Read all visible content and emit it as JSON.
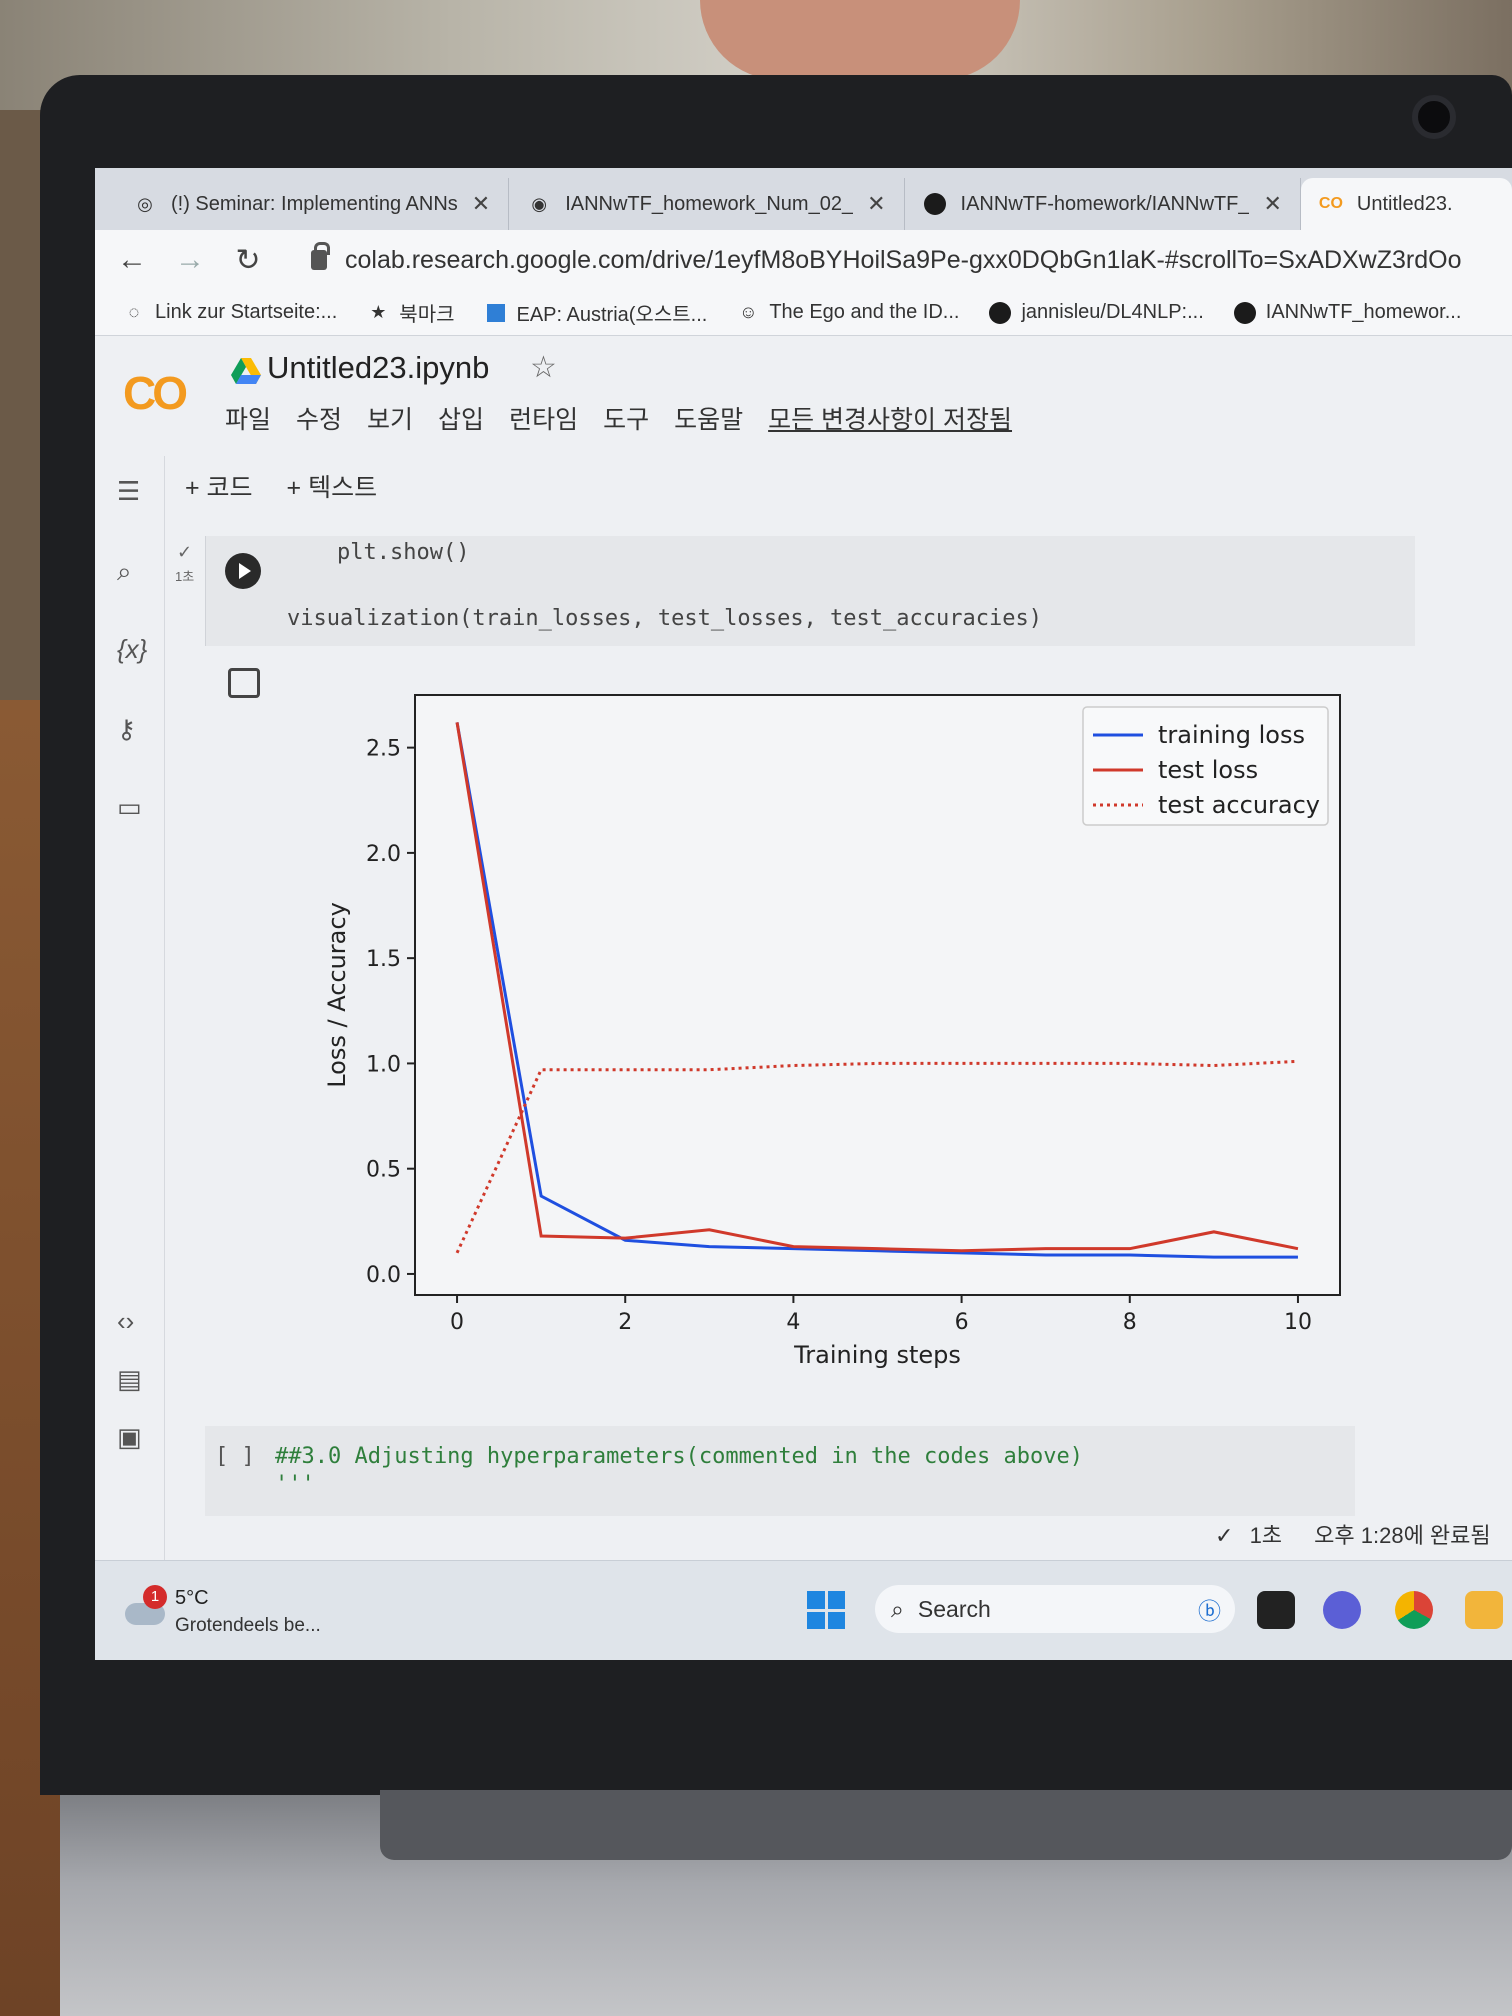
{
  "browser": {
    "tabs": [
      {
        "title": "(!) Seminar: Implementing ANNs",
        "active": false
      },
      {
        "title": "IANNwTF_homework_Num_02_",
        "active": false
      },
      {
        "title": "IANNwTF-homework/IANNwTF_",
        "active": false
      },
      {
        "title": "Untitled23.",
        "active": true
      }
    ],
    "url": "colab.research.google.com/drive/1eyfM8oBYHoilSa9Pe-gxx0DQbGn1laK-#scrollTo=SxADXwZ3rdOo",
    "bookmarks": [
      {
        "label": "Link zur Startseite:...",
        "icon": "page-icon"
      },
      {
        "label": "북마크",
        "icon": "star-icon"
      },
      {
        "label": "EAP: Austria(오스트...",
        "icon": "square-icon"
      },
      {
        "label": "The Ego and the ID...",
        "icon": "portrait-icon"
      },
      {
        "label": "jannisleu/DL4NLP:...",
        "icon": "github-icon"
      },
      {
        "label": "IANNwTF_homewor...",
        "icon": "github-icon"
      }
    ]
  },
  "colab": {
    "logo": "CO",
    "notebook_title": "Untitled23.ipynb",
    "menu": [
      "파일",
      "수정",
      "보기",
      "삽입",
      "런타임",
      "도구",
      "도움말"
    ],
    "save_status": "모든 변경사항이 저장됨",
    "insert_code": "+ 코드",
    "insert_text": "+ 텍스트",
    "exec_time_short": "1초",
    "code_lines": [
      "plt.show()",
      "visualization(train_losses, test_losses, test_accuracies)"
    ],
    "md_cell_prompt": "[ ]",
    "md_cell_text": "##3.0 Adjusting hyperparameters(commented in the codes above)",
    "md_cell_text2": "'''",
    "status_check": "✓",
    "status_time": "1초",
    "status_done": "오후 1:28에 완료됨"
  },
  "chart_data": {
    "type": "line",
    "xlabel": "Training steps",
    "ylabel": "Loss / Accuracy",
    "xlim": [
      -0.5,
      10.5
    ],
    "ylim": [
      -0.1,
      2.75
    ],
    "xticks": [
      0,
      2,
      4,
      6,
      8,
      10
    ],
    "yticks": [
      0.0,
      0.5,
      1.0,
      1.5,
      2.0,
      2.5
    ],
    "ytick_labels": [
      "0.0",
      "0.5",
      "1.0",
      "1.5",
      "2.0",
      "2.5"
    ],
    "legend_position": "top-right",
    "grid": false,
    "x": [
      0,
      1,
      2,
      3,
      4,
      5,
      6,
      7,
      8,
      9,
      10
    ],
    "series": [
      {
        "name": "training loss",
        "color": "#1f4fe0",
        "style": "solid",
        "values": [
          2.62,
          0.37,
          0.16,
          0.13,
          0.12,
          0.11,
          0.1,
          0.09,
          0.09,
          0.08,
          0.08
        ]
      },
      {
        "name": "test loss",
        "color": "#d0392b",
        "style": "solid",
        "values": [
          2.62,
          0.18,
          0.17,
          0.21,
          0.13,
          0.12,
          0.11,
          0.12,
          0.12,
          0.2,
          0.12
        ]
      },
      {
        "name": "test accuracy",
        "color": "#d0392b",
        "style": "dotted",
        "values": [
          0.1,
          0.97,
          0.97,
          0.97,
          0.99,
          1.0,
          1.0,
          1.0,
          1.0,
          0.99,
          1.01
        ]
      }
    ]
  },
  "taskbar": {
    "weather_badge": "1",
    "temperature": "5°C",
    "weather_desc": "Grotendeels be...",
    "search_label": "Search"
  },
  "colors": {
    "colab_orange": "#f39a1f",
    "training_loss": "#1f4fe0",
    "test_loss": "#d0392b"
  }
}
